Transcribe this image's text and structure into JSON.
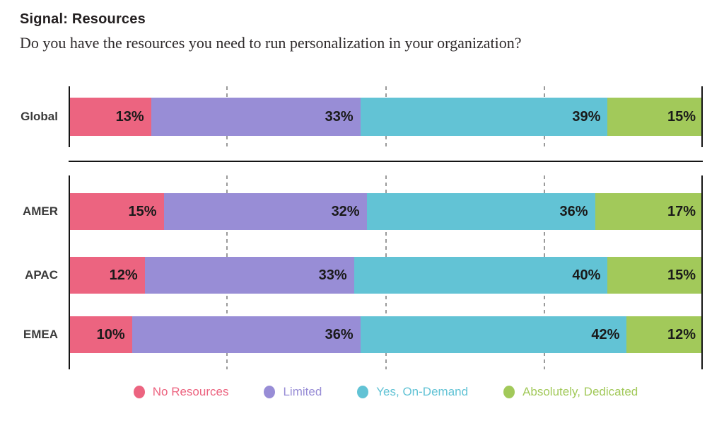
{
  "title": "Signal: Resources",
  "subtitle": "Do you have the resources you need to run personalization in your organization?",
  "colors": {
    "no_resources": "#EC6480",
    "limited": "#988DD6",
    "yes_on_demand": "#62C3D5",
    "absolutely_dedicated": "#A2C95A",
    "axis": "#151515",
    "gridline": "#9A9A9A",
    "row_label": "#3B3B3B",
    "value_label": "#1A1A1A"
  },
  "chart_data": {
    "type": "bar",
    "orientation": "horizontal",
    "stacked": true,
    "unit": "%",
    "title": "Signal: Resources",
    "subtitle": "Do you have the resources you need to run personalization in your organization?",
    "categories": [
      "Global",
      "AMER",
      "APAC",
      "EMEA"
    ],
    "category_groups": [
      [
        "Global"
      ],
      [
        "AMER",
        "APAC",
        "EMEA"
      ]
    ],
    "series": [
      {
        "name": "No Resources",
        "color": "#EC6480",
        "values": [
          13,
          15,
          12,
          10
        ]
      },
      {
        "name": "Limited",
        "color": "#988DD6",
        "values": [
          33,
          32,
          33,
          36
        ]
      },
      {
        "name": "Yes, On-Demand",
        "color": "#62C3D5",
        "values": [
          39,
          36,
          40,
          42
        ]
      },
      {
        "name": "Absolutely, Dedicated",
        "color": "#A2C95A",
        "values": [
          15,
          17,
          15,
          12
        ]
      }
    ],
    "xlim": [
      0,
      100
    ],
    "gridlines_pct": [
      25,
      50,
      75
    ],
    "grid": "dashed-vertical",
    "legend_position": "bottom",
    "value_labels": "inside-right"
  }
}
